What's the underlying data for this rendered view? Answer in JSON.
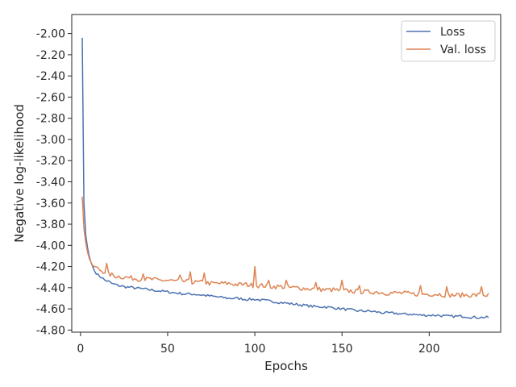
{
  "chart_data": {
    "type": "line",
    "xlabel": "Epochs",
    "ylabel": "Negative log-likelihood",
    "xlim": [
      -5,
      241
    ],
    "ylim": [
      -4.82,
      -1.82
    ],
    "xticks": [
      0,
      50,
      100,
      150,
      200
    ],
    "yticks": [
      -2.0,
      -2.2,
      -2.4,
      -2.6,
      -2.8,
      -3.0,
      -3.2,
      -3.4,
      -3.6,
      -3.8,
      -4.0,
      -4.2,
      -4.4,
      -4.6,
      -4.8
    ],
    "ytick_labels": [
      "-2.00",
      "-2.20",
      "-2.40",
      "-2.60",
      "-2.80",
      "-3.00",
      "-3.20",
      "-3.40",
      "-3.60",
      "-3.80",
      "-4.00",
      "-4.20",
      "-4.40",
      "-4.60",
      "-4.80"
    ],
    "xtick_labels": [
      "0",
      "50",
      "100",
      "150",
      "200"
    ],
    "grid": false,
    "legend_position": "top-right",
    "series": [
      {
        "name": "Loss",
        "color": "#4c72b0",
        "points": [
          [
            1,
            -2.04
          ],
          [
            2,
            -3.6
          ],
          [
            3,
            -3.9
          ],
          [
            4,
            -4.02
          ],
          [
            5,
            -4.1
          ],
          [
            6,
            -4.16
          ],
          [
            7,
            -4.2
          ],
          [
            8,
            -4.24
          ],
          [
            10,
            -4.28
          ],
          [
            12,
            -4.3
          ],
          [
            14,
            -4.33
          ],
          [
            16,
            -4.34
          ],
          [
            18,
            -4.36
          ],
          [
            20,
            -4.37
          ],
          [
            22,
            -4.38
          ],
          [
            25,
            -4.39
          ],
          [
            30,
            -4.4
          ],
          [
            35,
            -4.41
          ],
          [
            40,
            -4.42
          ],
          [
            45,
            -4.43
          ],
          [
            50,
            -4.44
          ],
          [
            55,
            -4.45
          ],
          [
            60,
            -4.46
          ],
          [
            65,
            -4.46
          ],
          [
            70,
            -4.47
          ],
          [
            75,
            -4.48
          ],
          [
            80,
            -4.49
          ],
          [
            85,
            -4.5
          ],
          [
            90,
            -4.5
          ],
          [
            95,
            -4.51
          ],
          [
            100,
            -4.51
          ],
          [
            105,
            -4.52
          ],
          [
            110,
            -4.53
          ],
          [
            115,
            -4.54
          ],
          [
            120,
            -4.55
          ],
          [
            125,
            -4.56
          ],
          [
            130,
            -4.57
          ],
          [
            135,
            -4.58
          ],
          [
            140,
            -4.58
          ],
          [
            145,
            -4.59
          ],
          [
            150,
            -4.6
          ],
          [
            155,
            -4.61
          ],
          [
            160,
            -4.62
          ],
          [
            165,
            -4.62
          ],
          [
            170,
            -4.63
          ],
          [
            175,
            -4.64
          ],
          [
            180,
            -4.64
          ],
          [
            185,
            -4.65
          ],
          [
            190,
            -4.65
          ],
          [
            195,
            -4.66
          ],
          [
            200,
            -4.66
          ],
          [
            205,
            -4.66
          ],
          [
            210,
            -4.67
          ],
          [
            215,
            -4.67
          ],
          [
            220,
            -4.67
          ],
          [
            225,
            -4.68
          ],
          [
            230,
            -4.68
          ],
          [
            234,
            -4.68
          ]
        ],
        "noise_amp": 0.012,
        "spikes": []
      },
      {
        "name": "Val. loss",
        "color": "#dd8452",
        "points": [
          [
            1,
            -3.54
          ],
          [
            2,
            -3.84
          ],
          [
            3,
            -3.97
          ],
          [
            4,
            -4.06
          ],
          [
            5,
            -4.12
          ],
          [
            6,
            -4.16
          ],
          [
            7,
            -4.19
          ],
          [
            8,
            -4.2
          ],
          [
            10,
            -4.22
          ],
          [
            12,
            -4.24
          ],
          [
            14,
            -4.25
          ],
          [
            16,
            -4.27
          ],
          [
            18,
            -4.28
          ],
          [
            20,
            -4.29
          ],
          [
            25,
            -4.3
          ],
          [
            30,
            -4.31
          ],
          [
            35,
            -4.32
          ],
          [
            40,
            -4.32
          ],
          [
            45,
            -4.33
          ],
          [
            50,
            -4.33
          ],
          [
            55,
            -4.34
          ],
          [
            60,
            -4.34
          ],
          [
            65,
            -4.35
          ],
          [
            70,
            -4.35
          ],
          [
            75,
            -4.36
          ],
          [
            80,
            -4.36
          ],
          [
            85,
            -4.36
          ],
          [
            90,
            -4.37
          ],
          [
            95,
            -4.37
          ],
          [
            100,
            -4.38
          ],
          [
            105,
            -4.38
          ],
          [
            110,
            -4.39
          ],
          [
            115,
            -4.39
          ],
          [
            120,
            -4.4
          ],
          [
            125,
            -4.4
          ],
          [
            130,
            -4.41
          ],
          [
            135,
            -4.41
          ],
          [
            140,
            -4.42
          ],
          [
            145,
            -4.42
          ],
          [
            150,
            -4.43
          ],
          [
            155,
            -4.43
          ],
          [
            160,
            -4.44
          ],
          [
            165,
            -4.44
          ],
          [
            170,
            -4.44
          ],
          [
            175,
            -4.45
          ],
          [
            180,
            -4.45
          ],
          [
            185,
            -4.45
          ],
          [
            190,
            -4.46
          ],
          [
            195,
            -4.46
          ],
          [
            200,
            -4.46
          ],
          [
            205,
            -4.46
          ],
          [
            210,
            -4.47
          ],
          [
            215,
            -4.47
          ],
          [
            220,
            -4.47
          ],
          [
            225,
            -4.47
          ],
          [
            230,
            -4.47
          ],
          [
            234,
            -4.47
          ]
        ],
        "noise_amp": 0.022,
        "spikes": [
          [
            15,
            -4.17
          ],
          [
            36,
            -4.27
          ],
          [
            57,
            -4.28
          ],
          [
            63,
            -4.25
          ],
          [
            71,
            -4.26
          ],
          [
            100,
            -4.2
          ],
          [
            108,
            -4.33
          ],
          [
            118,
            -4.33
          ],
          [
            135,
            -4.35
          ],
          [
            150,
            -4.33
          ],
          [
            160,
            -4.38
          ],
          [
            195,
            -4.38
          ],
          [
            210,
            -4.39
          ],
          [
            230,
            -4.39
          ]
        ]
      }
    ]
  }
}
